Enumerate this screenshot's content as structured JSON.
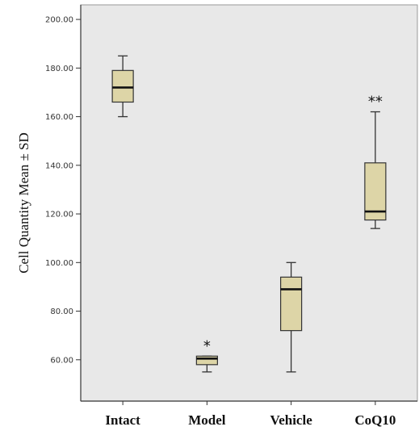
{
  "chart_data": {
    "type": "box",
    "title": "",
    "xlabel": "",
    "ylabel": "Cell Quantity  Mean ± SD",
    "ylim": [
      43,
      206
    ],
    "y_ticks": [
      "60.00",
      "80.00",
      "100.00",
      "120.00",
      "140.00",
      "160.00",
      "180.00",
      "200.00"
    ],
    "y_tick_values": [
      60,
      80,
      100,
      120,
      140,
      160,
      180,
      200
    ],
    "categories": [
      "Intact",
      "Model",
      "Vehicle",
      "CoQ10"
    ],
    "boxes": [
      {
        "category": "Intact",
        "whisker_low": 160,
        "q1": 166,
        "median": 172,
        "q3": 179,
        "whisker_high": 185,
        "annotation": ""
      },
      {
        "category": "Model",
        "whisker_low": 55,
        "q1": 58,
        "median": 60.5,
        "q3": 61.5,
        "whisker_high": 61.5,
        "annotation": "*"
      },
      {
        "category": "Vehicle",
        "whisker_low": 55,
        "q1": 72,
        "median": 89,
        "q3": 94,
        "whisker_high": 100,
        "annotation": ""
      },
      {
        "category": "CoQ10",
        "whisker_low": 114,
        "q1": 117.5,
        "median": 121,
        "q3": 141,
        "whisker_high": 162,
        "annotation": "**"
      }
    ],
    "grid": false,
    "colors": {
      "plot_background": "#e8e8e8",
      "box_fill": "#ddd5a7",
      "stroke": "#333333"
    }
  }
}
